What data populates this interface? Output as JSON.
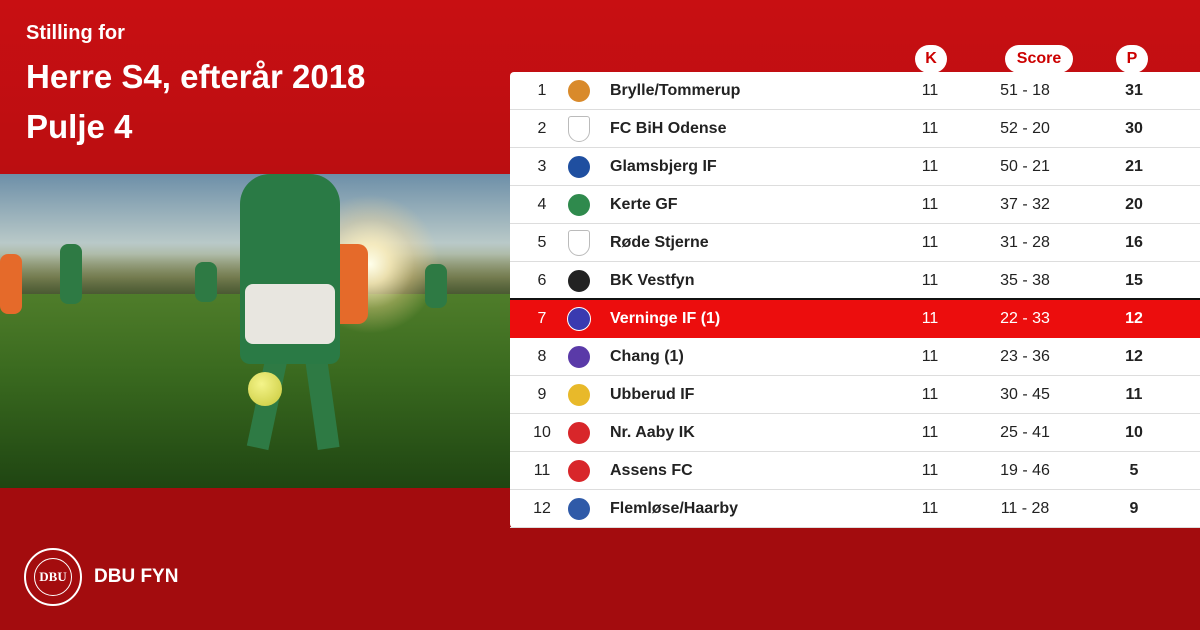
{
  "header": {
    "subtitle": "Stilling for",
    "title": "Herre S4, efterår 2018",
    "pool": "Pulje 4"
  },
  "columns": {
    "k": "K",
    "score": "Score",
    "p": "P"
  },
  "standings": [
    {
      "rank": "1",
      "team": "Brylle/Tommerup",
      "k": "11",
      "score": "51 - 18",
      "p": "31",
      "logo": "brylle-tommerup-logo",
      "color": "#d98a2b"
    },
    {
      "rank": "2",
      "team": "FC BiH Odense",
      "k": "11",
      "score": "52 - 20",
      "p": "30",
      "logo": "generic-shield-logo",
      "color": "#ffffff"
    },
    {
      "rank": "3",
      "team": "Glamsbjerg IF",
      "k": "11",
      "score": "50 - 21",
      "p": "21",
      "logo": "glamsbjerg-logo",
      "color": "#1f4fa0"
    },
    {
      "rank": "4",
      "team": "Kerte GF",
      "k": "11",
      "score": "37 - 32",
      "p": "20",
      "logo": "kerte-logo",
      "color": "#2f8a4d"
    },
    {
      "rank": "5",
      "team": "Røde Stjerne",
      "k": "11",
      "score": "31 - 28",
      "p": "16",
      "logo": "generic-shield-logo",
      "color": "#ffffff"
    },
    {
      "rank": "6",
      "team": "BK Vestfyn",
      "k": "11",
      "score": "35 - 38",
      "p": "15",
      "logo": "bk-vestfyn-logo",
      "color": "#222222"
    },
    {
      "rank": "7",
      "team": "Verninge IF (1)",
      "k": "11",
      "score": "22 - 33",
      "p": "12",
      "logo": "verninge-logo",
      "color": "#3a3ab0"
    },
    {
      "rank": "8",
      "team": "Chang  (1)",
      "k": "11",
      "score": "23 - 36",
      "p": "12",
      "logo": "chang-logo",
      "color": "#5a3aa8"
    },
    {
      "rank": "9",
      "team": "Ubberud IF",
      "k": "11",
      "score": "30 - 45",
      "p": "11",
      "logo": "ubberud-logo",
      "color": "#e8b92a"
    },
    {
      "rank": "10",
      "team": "Nr. Aaby IK",
      "k": "11",
      "score": "25 - 41",
      "p": "10",
      "logo": "nr-aaby-logo",
      "color": "#d8262a"
    },
    {
      "rank": "11",
      "team": "Assens FC",
      "k": "11",
      "score": "19 - 46",
      "p": "5",
      "logo": "assens-logo",
      "color": "#d8262a"
    },
    {
      "rank": "12",
      "team": "Flemløse/Haarby",
      "k": "11",
      "score": "11 - 28",
      "p": "9",
      "logo": "flemlose-haarby-logo",
      "color": "#2f5aa8"
    }
  ],
  "highlight_rank": "7",
  "footer": {
    "org_name": "DBU FYN",
    "logo_text": "DBU"
  },
  "colors": {
    "background": "#c80f12",
    "highlight": "#ec0d0d",
    "pill_text": "#cc0000"
  }
}
